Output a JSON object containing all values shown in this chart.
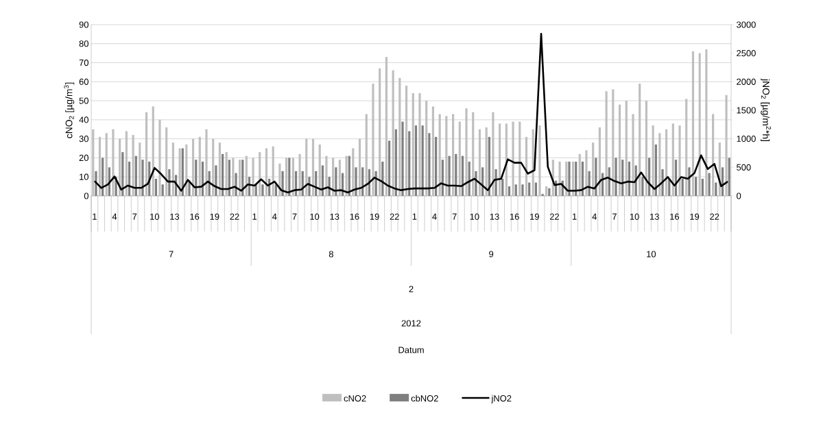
{
  "chart_data": {
    "type": "bar",
    "ylabel": "cNO$_{2}$ [µg/m$^{3}$]",
    "y2label": "jNO$_{2}$ [µg/m$^{2}$*h]",
    "categories": [
      "1",
      null,
      null,
      "4",
      null,
      null,
      "7",
      null,
      null,
      "10",
      null,
      null,
      "13",
      null,
      null,
      "16",
      null,
      null,
      "19",
      null,
      null,
      "22",
      null,
      null,
      "1",
      null,
      null,
      "4",
      null,
      null,
      "7",
      null,
      null,
      "10",
      null,
      null,
      "13",
      null,
      null,
      "16",
      null,
      null,
      "19",
      null,
      null,
      "22",
      null,
      null,
      "1",
      null,
      null,
      "4",
      null,
      null,
      "7",
      null,
      null,
      "10",
      null,
      null,
      "13",
      null,
      null,
      "16",
      null,
      null,
      "19",
      null,
      null,
      "22",
      null,
      null,
      "1",
      null,
      null,
      "4",
      null,
      null,
      "7",
      null,
      null,
      "10",
      null,
      null,
      "13",
      null,
      null,
      "16",
      null,
      null,
      "19",
      null,
      null,
      "22",
      null,
      null
    ],
    "series": [
      {
        "name": "cNO2",
        "color": "#bfbfbf",
        "values": [
          35,
          31,
          33,
          35,
          30,
          34,
          32,
          28,
          44,
          47,
          40,
          36,
          28,
          25,
          27,
          30,
          31,
          35,
          30,
          28,
          23,
          20,
          19,
          21,
          20,
          23,
          25,
          26,
          17,
          20,
          20,
          22,
          30,
          30,
          27,
          21,
          20,
          19,
          21,
          25,
          30,
          43,
          59,
          67,
          73,
          66,
          62,
          58,
          54,
          54,
          50,
          47,
          43,
          42,
          43,
          39,
          46,
          44,
          35,
          36,
          44,
          38,
          38,
          39,
          39,
          31,
          35,
          37,
          5,
          19,
          18,
          18,
          18,
          22,
          24,
          28,
          36,
          55,
          56,
          48,
          50,
          43,
          59,
          50,
          37,
          33,
          35,
          38,
          37,
          51,
          76,
          75,
          77,
          43,
          28,
          53
        ]
      },
      {
        "name": "cbNO2",
        "color": "#7f7f7f",
        "values": [
          13,
          20,
          15,
          10,
          23,
          18,
          21,
          19,
          18,
          9,
          6,
          14,
          11,
          25,
          8,
          19,
          18,
          13,
          16,
          22,
          19,
          12,
          19,
          10,
          6,
          6,
          9,
          6,
          13,
          20,
          13,
          13,
          10,
          13,
          16,
          10,
          15,
          12,
          21,
          15,
          15,
          14,
          13,
          18,
          29,
          35,
          39,
          34,
          37,
          37,
          33,
          31,
          19,
          21,
          22,
          21,
          18,
          13,
          15,
          31,
          14,
          9,
          5,
          6,
          6,
          7,
          7,
          1,
          4,
          8,
          8,
          18,
          18,
          18,
          13,
          20,
          12,
          15,
          20,
          19,
          18,
          16,
          10,
          20,
          27,
          14,
          9,
          19,
          9,
          15,
          10,
          9,
          12,
          7,
          15,
          20
        ]
      },
      {
        "name": "jNO2",
        "color": "#000000",
        "type": "line",
        "axis": "y2",
        "values": [
          260,
          140,
          200,
          340,
          110,
          180,
          140,
          140,
          210,
          490,
          380,
          250,
          250,
          90,
          280,
          150,
          160,
          250,
          170,
          120,
          120,
          160,
          90,
          200,
          180,
          290,
          180,
          250,
          100,
          60,
          100,
          110,
          210,
          160,
          110,
          150,
          90,
          100,
          60,
          110,
          140,
          210,
          320,
          260,
          180,
          130,
          100,
          120,
          130,
          130,
          130,
          140,
          220,
          180,
          180,
          170,
          240,
          300,
          200,
          100,
          280,
          300,
          640,
          580,
          580,
          390,
          450,
          2840,
          510,
          190,
          210,
          90,
          90,
          100,
          160,
          130,
          280,
          320,
          260,
          220,
          250,
          240,
          410,
          240,
          120,
          220,
          330,
          180,
          330,
          300,
          400,
          710,
          470,
          560,
          170,
          250
        ]
      }
    ],
    "ylim": [
      0,
      90
    ],
    "yticks": [
      0,
      10,
      20,
      30,
      40,
      50,
      60,
      70,
      80,
      90
    ],
    "y2lim": [
      0,
      3000
    ],
    "y2ticks": [
      0,
      500,
      1000,
      1500,
      2000,
      2500,
      3000
    ],
    "grid": "y",
    "legend": "bottom",
    "annotations": [
      "7",
      "8",
      "9",
      "10",
      "2",
      "2012",
      "Datum"
    ]
  }
}
